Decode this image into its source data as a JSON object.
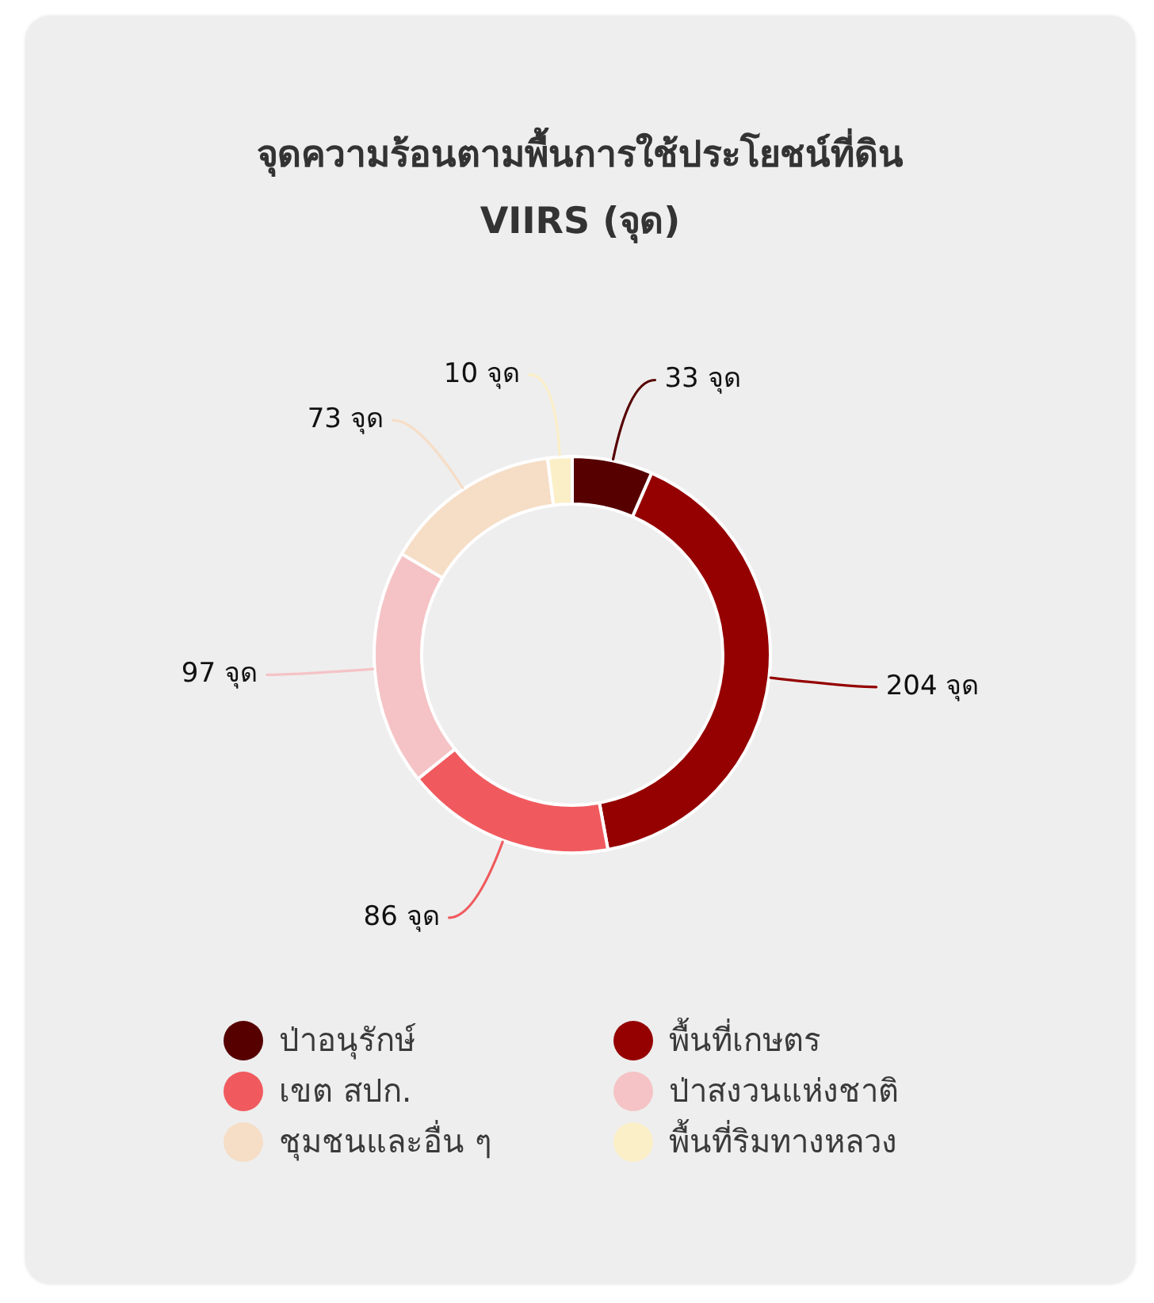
{
  "chart_data": {
    "type": "donut",
    "title": "จุดความร้อนตามพื้นการใช้ประโยชน์ที่ดิน",
    "subtitle": "VIIRS (จุด)",
    "categories": [
      "ป่าอนุรักษ์",
      "พื้นที่เกษตร",
      "เขต สปก.",
      "ป่าสงวนแห่งชาติ",
      "ชุมชนและอื่น ๆ",
      "พื้นที่ริมทางหลวง"
    ],
    "values": [
      33,
      204,
      86,
      97,
      73,
      10
    ],
    "colors": [
      "#560000",
      "#950000",
      "#f05a5e",
      "#f5c3c5",
      "#f6ddc6",
      "#fbefc8"
    ],
    "value_labels": [
      "33 จุด",
      "204 จุด",
      "86 จุด",
      "97 จุด",
      "73 จุด",
      "10 จุด"
    ],
    "legend": "bottom"
  }
}
